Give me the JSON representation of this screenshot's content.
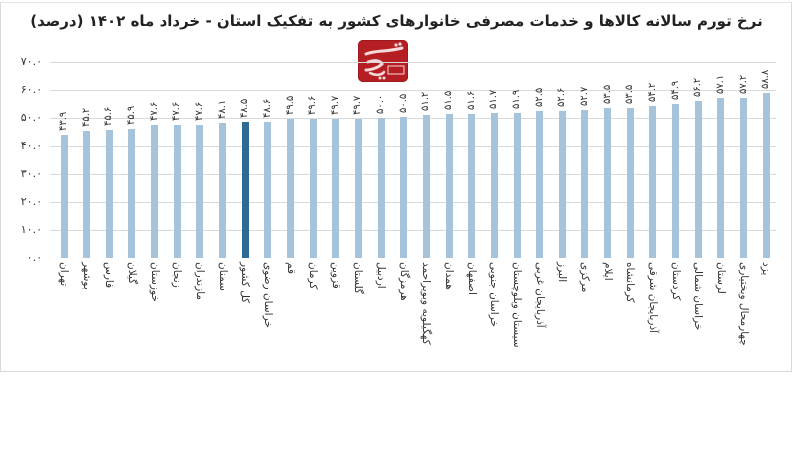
{
  "title": "نرخ تورم سالانه کالاها و خدمات مصرفی خانوارهای کشور به تفکیک استان - خرداد ماه ۱۴۰۲ (درصد)",
  "logo": {
    "name": "tasnim-logo",
    "text": "تسنیم",
    "color": "#b51f24"
  },
  "colors": {
    "bar": "#a6c3dc",
    "highlight": "#2d6a94",
    "grid": "#d9d9d9"
  },
  "yaxis": {
    "ticks": [
      "۷۰.۰",
      "۶۰.۰",
      "۵۰.۰",
      "۴۰.۰",
      "۳۰.۰",
      "۲۰.۰",
      "۱۰.۰",
      "۰.۰"
    ]
  },
  "chart_data": {
    "type": "bar",
    "title": "نرخ تورم سالانه کالاها و خدمات مصرفی خانوارهای کشور به تفکیک استان - خرداد ماه ۱۴۰۲ (درصد)",
    "xlabel": "",
    "ylabel": "",
    "ylim": [
      0,
      70
    ],
    "yticks": [
      0,
      10,
      20,
      30,
      40,
      50,
      60,
      70
    ],
    "grid": true,
    "legend": "none",
    "highlight_category": "کل کشور",
    "categories": [
      "تهران",
      "بوشهر",
      "فارس",
      "گیلان",
      "خوزستان",
      "زنجان",
      "مازندران",
      "سمنان",
      "کل کشور",
      "خراسان رضوی",
      "قم",
      "کرمان",
      "قزوین",
      "گلستان",
      "اردبیل",
      "هرمزگان",
      "کهگیلویه وبویراحمد",
      "همدان",
      "اصفهان",
      "خراسان جنوبی",
      "سیستان وبلوچستان",
      "آذربایجان غربی",
      "البرز",
      "مرکزی",
      "ایلام",
      "کرمانشاه",
      "آذربایجان شرقی",
      "کردستان",
      "خراسان شمالی",
      "لرستان",
      "چهارمحال وبختیاری",
      "یزد"
    ],
    "values": [
      43.9,
      45.2,
      45.6,
      45.9,
      47.6,
      47.6,
      47.6,
      48.1,
      48.5,
      48.6,
      49.5,
      49.6,
      49.7,
      49.7,
      50.0,
      50.5,
      51.2,
      51.5,
      51.6,
      51.7,
      51.9,
      52.5,
      52.6,
      52.7,
      53.5,
      53.5,
      54.2,
      54.9,
      56.2,
      57.1,
      57.2,
      58.8
    ],
    "value_labels": [
      "۴۳.۹",
      "۴۵.۲",
      "۴۵.۶",
      "۴۵.۹",
      "۴۷.۶",
      "۴۷.۶",
      "۴۷.۶",
      "۴۸.۱",
      "۴۸.۵",
      "۴۸.۶",
      "۴۹.۵",
      "۴۹.۶",
      "۴۹.۷",
      "۴۹.۷",
      "۵۰.۰",
      "۵۰.۵",
      "۵۱.۲",
      "۵۱.۵",
      "۵۱.۶",
      "۵۱.۷",
      "۵۱.۹",
      "۵۲.۵",
      "۵۲.۶",
      "۵۲.۷",
      "۵۳.۵",
      "۵۳.۵",
      "۵۴.۲",
      "۵۴.۹",
      "۵۶.۲",
      "۵۷.۱",
      "۵۷.۲",
      "۵۸.۸"
    ]
  }
}
